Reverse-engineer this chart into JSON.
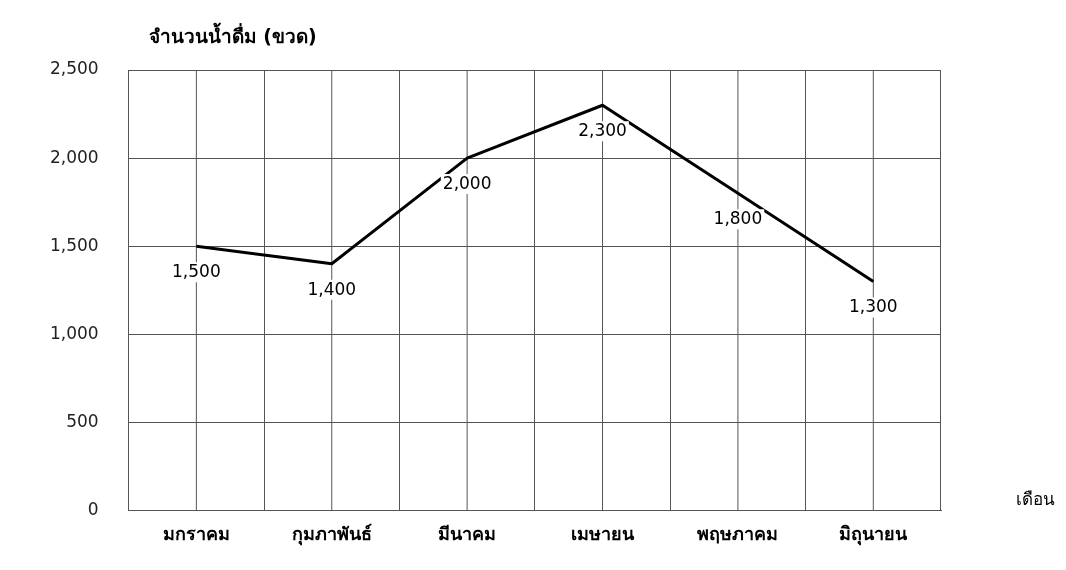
{
  "chart_data": {
    "type": "line",
    "ylabel": "จำนวนน้ำดื่ม (ขวด)",
    "xlabel": "เดือน",
    "categories": [
      "มกราคม",
      "กุมภาพันธ์",
      "มีนาคม",
      "เมษายน",
      "พฤษภาคม",
      "มิถุนายน"
    ],
    "series": [
      {
        "color": "#000000",
        "values": [
          1500,
          1400,
          2000,
          2300,
          1800,
          1300
        ],
        "value_labels": [
          "1,500",
          "1,400",
          "2,000",
          "2,300",
          "1,800",
          "1,300"
        ]
      }
    ],
    "ylim": [
      0,
      2500
    ],
    "yticks": [
      {
        "value": 0,
        "label": "0"
      },
      {
        "value": 500,
        "label": "500"
      },
      {
        "value": 1000,
        "label": "1,000"
      },
      {
        "value": 1500,
        "label": "1,500"
      },
      {
        "value": 2000,
        "label": "2,000"
      },
      {
        "value": 2500,
        "label": "2,500"
      }
    ],
    "grid": true,
    "legend": false,
    "marker": "none",
    "line_style": "solid"
  }
}
